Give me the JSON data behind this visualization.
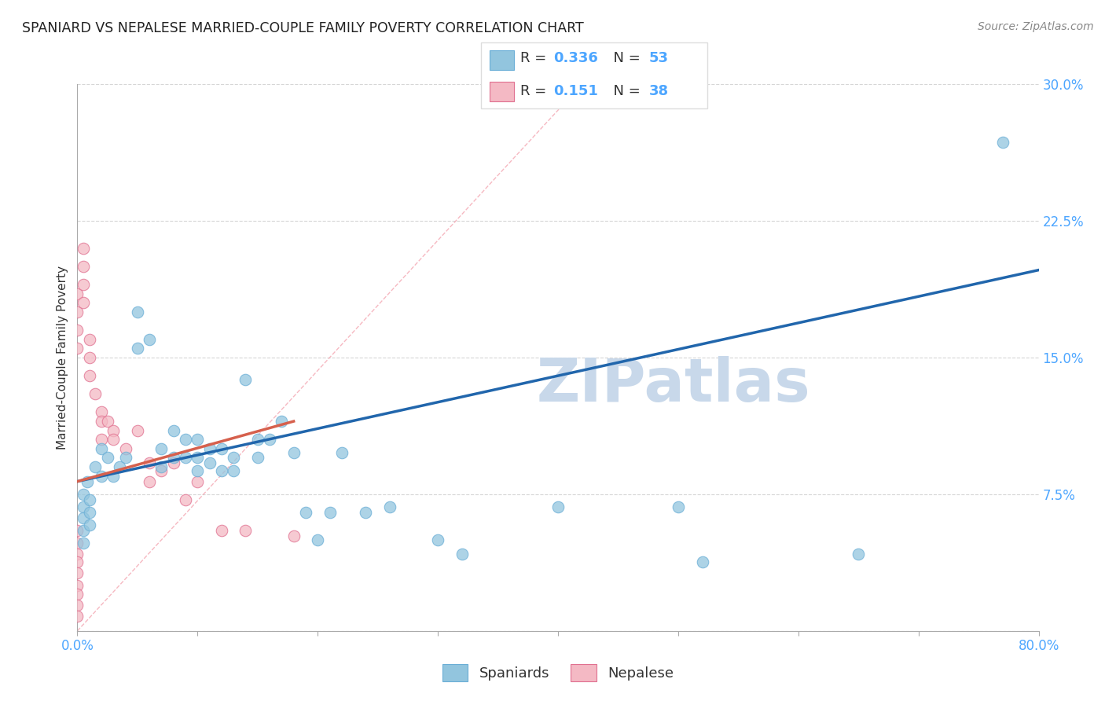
{
  "title": "SPANIARD VS NEPALESE MARRIED-COUPLE FAMILY POVERTY CORRELATION CHART",
  "source": "Source: ZipAtlas.com",
  "ylabel": "Married-Couple Family Poverty",
  "xlim": [
    0.0,
    0.8
  ],
  "ylim": [
    0.0,
    0.3
  ],
  "xticks": [
    0.0,
    0.1,
    0.2,
    0.3,
    0.4,
    0.5,
    0.6,
    0.7,
    0.8
  ],
  "yticks": [
    0.0,
    0.075,
    0.15,
    0.225,
    0.3
  ],
  "xtick_labels": [
    "0.0%",
    "",
    "",
    "",
    "",
    "",
    "",
    "",
    "80.0%"
  ],
  "ytick_labels": [
    "",
    "7.5%",
    "15.0%",
    "22.5%",
    "30.0%"
  ],
  "spaniard_color": "#92c5de",
  "spaniard_edge": "#6aaed6",
  "nepalese_color": "#f4b9c4",
  "nepalese_edge": "#e07090",
  "tick_color": "#4da6ff",
  "spaniard_line_color": "#2166ac",
  "nepalese_line_color": "#d6604d",
  "ref_line_color": "#f4a7b2",
  "spaniard_R": "0.336",
  "spaniard_N": "53",
  "nepalese_R": "0.151",
  "nepalese_N": "38",
  "spaniard_scatter_x": [
    0.005,
    0.005,
    0.005,
    0.005,
    0.005,
    0.008,
    0.01,
    0.01,
    0.01,
    0.015,
    0.02,
    0.02,
    0.025,
    0.03,
    0.035,
    0.04,
    0.05,
    0.05,
    0.06,
    0.07,
    0.07,
    0.08,
    0.08,
    0.09,
    0.09,
    0.1,
    0.1,
    0.1,
    0.11,
    0.11,
    0.12,
    0.12,
    0.13,
    0.13,
    0.14,
    0.15,
    0.15,
    0.16,
    0.17,
    0.18,
    0.19,
    0.2,
    0.21,
    0.22,
    0.24,
    0.26,
    0.3,
    0.32,
    0.4,
    0.5,
    0.52,
    0.65,
    0.77
  ],
  "spaniard_scatter_y": [
    0.075,
    0.068,
    0.062,
    0.055,
    0.048,
    0.082,
    0.072,
    0.065,
    0.058,
    0.09,
    0.1,
    0.085,
    0.095,
    0.085,
    0.09,
    0.095,
    0.175,
    0.155,
    0.16,
    0.1,
    0.09,
    0.11,
    0.095,
    0.105,
    0.095,
    0.105,
    0.095,
    0.088,
    0.1,
    0.092,
    0.1,
    0.088,
    0.095,
    0.088,
    0.138,
    0.105,
    0.095,
    0.105,
    0.115,
    0.098,
    0.065,
    0.05,
    0.065,
    0.098,
    0.065,
    0.068,
    0.05,
    0.042,
    0.068,
    0.068,
    0.038,
    0.042,
    0.268
  ],
  "nepalese_scatter_x": [
    0.0,
    0.0,
    0.0,
    0.0,
    0.0,
    0.0,
    0.0,
    0.0,
    0.0,
    0.0,
    0.0,
    0.0,
    0.0,
    0.005,
    0.005,
    0.005,
    0.005,
    0.01,
    0.01,
    0.01,
    0.015,
    0.02,
    0.02,
    0.02,
    0.025,
    0.03,
    0.03,
    0.04,
    0.05,
    0.06,
    0.06,
    0.07,
    0.08,
    0.09,
    0.1,
    0.12,
    0.14,
    0.18
  ],
  "nepalese_scatter_y": [
    0.055,
    0.048,
    0.042,
    0.038,
    0.032,
    0.025,
    0.02,
    0.014,
    0.008,
    0.185,
    0.175,
    0.165,
    0.155,
    0.21,
    0.2,
    0.19,
    0.18,
    0.16,
    0.15,
    0.14,
    0.13,
    0.12,
    0.115,
    0.105,
    0.115,
    0.11,
    0.105,
    0.1,
    0.11,
    0.092,
    0.082,
    0.088,
    0.092,
    0.072,
    0.082,
    0.055,
    0.055,
    0.052
  ],
  "spaniard_trend_x": [
    0.0,
    0.8
  ],
  "spaniard_trend_y": [
    0.082,
    0.198
  ],
  "nepalese_trend_x": [
    0.0,
    0.18
  ],
  "nepalese_trend_y": [
    0.082,
    0.115
  ],
  "ref_line_x": [
    0.0,
    0.42
  ],
  "ref_line_y": [
    0.0,
    0.3
  ],
  "watermark": "ZIPatlas",
  "watermark_color": "#c8d8ea",
  "grid_color": "#cccccc",
  "background_color": "#ffffff"
}
